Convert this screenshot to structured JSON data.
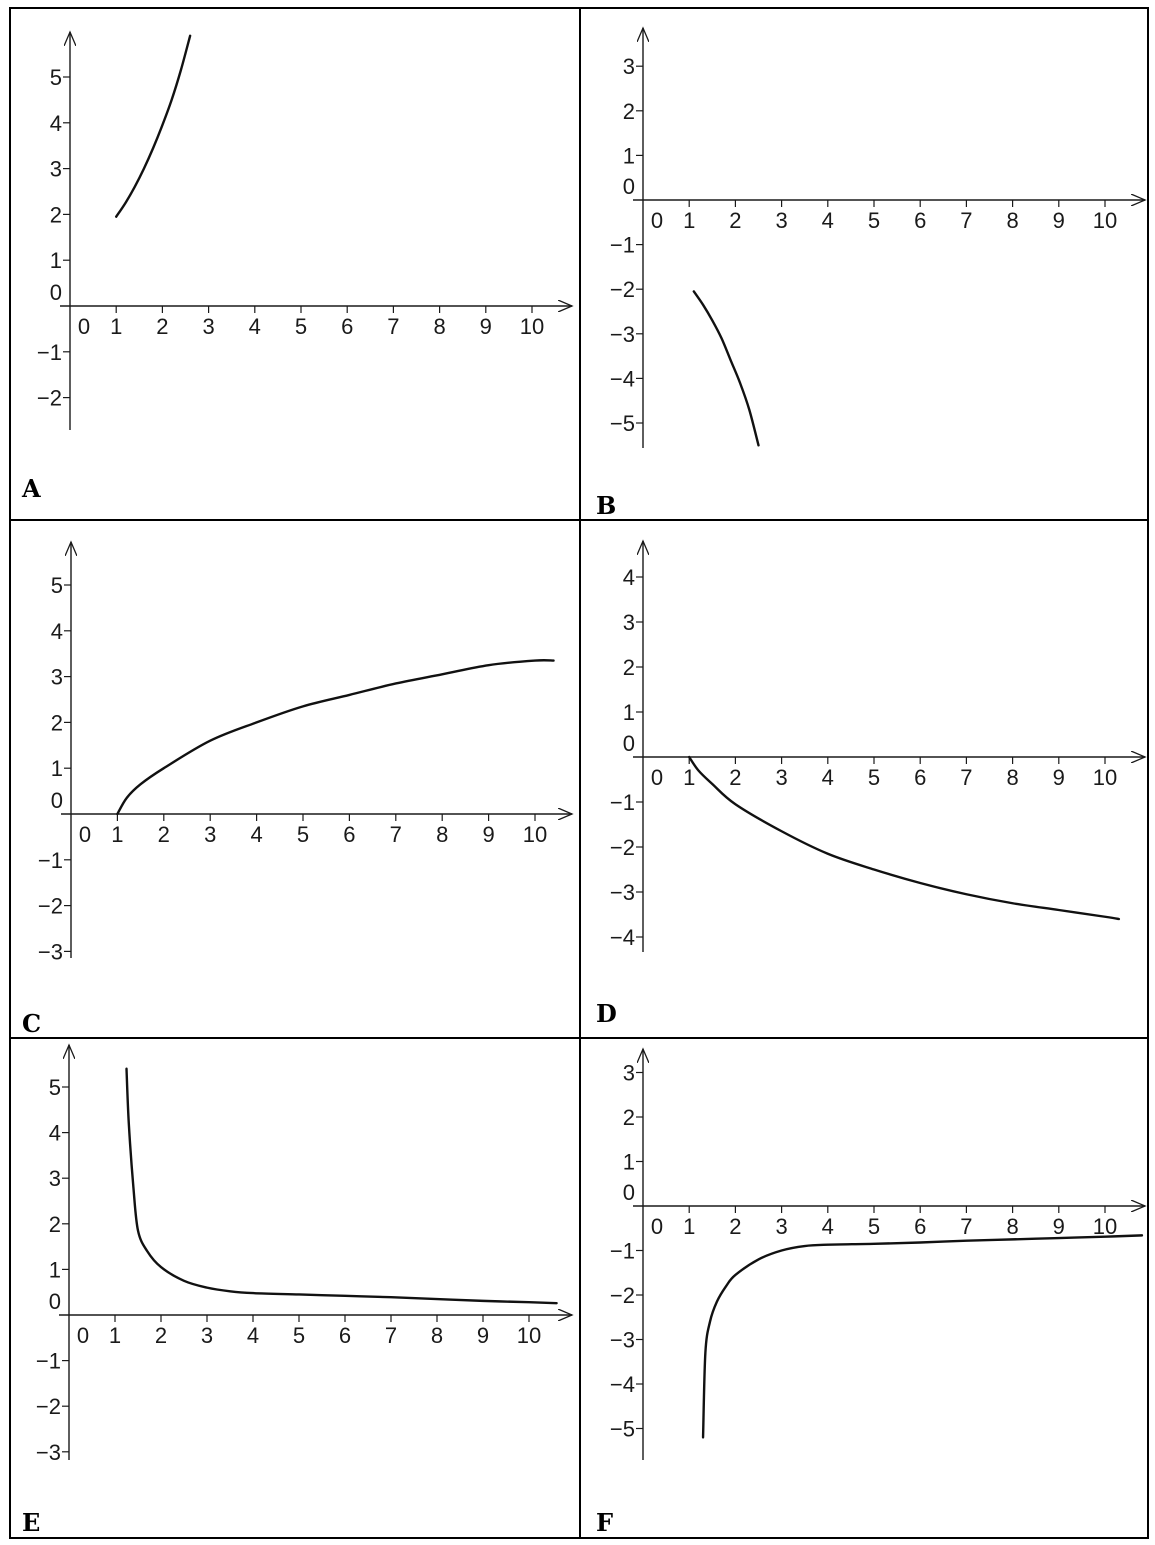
{
  "chart_data": [
    {
      "type": "line",
      "label": "A",
      "xlim": [
        0,
        10
      ],
      "ylim": [
        -2,
        5
      ],
      "x_ticks": [
        "0",
        "1",
        "2",
        "3",
        "4",
        "5",
        "6",
        "7",
        "8",
        "9",
        "10"
      ],
      "y_ticks": [
        "5",
        "4",
        "3",
        "2",
        "1",
        "0",
        "−1",
        "−2"
      ],
      "series": [
        {
          "x": [
            1.0,
            1.2,
            1.4,
            1.6,
            1.8,
            2.0,
            2.2,
            2.4,
            2.6
          ],
          "y": [
            1.95,
            2.25,
            2.6,
            3.0,
            3.45,
            3.95,
            4.5,
            5.15,
            5.9
          ]
        }
      ]
    },
    {
      "type": "line",
      "label": "B",
      "xlim": [
        0,
        10
      ],
      "ylim": [
        -5,
        3
      ],
      "x_ticks": [
        "0",
        "1",
        "2",
        "3",
        "4",
        "5",
        "6",
        "7",
        "8",
        "9",
        "10"
      ],
      "y_ticks": [
        "3",
        "2",
        "1",
        "0",
        "−1",
        "−2",
        "−3",
        "−4",
        "−5"
      ],
      "series": [
        {
          "x": [
            1.1,
            1.3,
            1.5,
            1.7,
            1.9,
            2.1,
            2.3,
            2.5
          ],
          "y": [
            -2.05,
            -2.35,
            -2.7,
            -3.1,
            -3.6,
            -4.1,
            -4.7,
            -5.5
          ]
        }
      ]
    },
    {
      "type": "line",
      "label": "C",
      "xlim": [
        0,
        10
      ],
      "ylim": [
        -3,
        5
      ],
      "x_ticks": [
        "0",
        "1",
        "2",
        "3",
        "4",
        "5",
        "6",
        "7",
        "8",
        "9",
        "10"
      ],
      "y_ticks": [
        "5",
        "4",
        "3",
        "2",
        "1",
        "0",
        "−1",
        "−2",
        "−3"
      ],
      "series": [
        {
          "x": [
            1.0,
            1.2,
            1.5,
            2,
            3,
            4,
            5,
            6,
            7,
            8,
            9,
            10,
            10.4
          ],
          "y": [
            0,
            0.35,
            0.65,
            1.0,
            1.6,
            2.0,
            2.35,
            2.6,
            2.85,
            3.05,
            3.25,
            3.35,
            3.35
          ]
        }
      ]
    },
    {
      "type": "line",
      "label": "D",
      "xlim": [
        0,
        10
      ],
      "ylim": [
        -4,
        4
      ],
      "x_ticks": [
        "0",
        "1",
        "2",
        "3",
        "4",
        "5",
        "6",
        "7",
        "8",
        "9",
        "10"
      ],
      "y_ticks": [
        "4",
        "3",
        "2",
        "1",
        "0",
        "−1",
        "−2",
        "−3",
        "−4"
      ],
      "series": [
        {
          "x": [
            1.0,
            1.2,
            1.5,
            2,
            3,
            4,
            5,
            6,
            7,
            8,
            9,
            10,
            10.3
          ],
          "y": [
            0,
            -0.3,
            -0.6,
            -1.05,
            -1.65,
            -2.15,
            -2.5,
            -2.8,
            -3.05,
            -3.25,
            -3.4,
            -3.55,
            -3.6
          ]
        }
      ]
    },
    {
      "type": "line",
      "label": "E",
      "xlim": [
        0,
        10
      ],
      "ylim": [
        -3,
        5
      ],
      "x_ticks": [
        "0",
        "1",
        "2",
        "3",
        "4",
        "5",
        "6",
        "7",
        "8",
        "9",
        "10"
      ],
      "y_ticks": [
        "5",
        "4",
        "3",
        "2",
        "1",
        "0",
        "−1",
        "−2",
        "−3"
      ],
      "series": [
        {
          "x": [
            1.25,
            1.3,
            1.4,
            1.5,
            1.7,
            2,
            2.5,
            3,
            3.5,
            4,
            5,
            6,
            7,
            8,
            9,
            10,
            10.6
          ],
          "y": [
            5.4,
            4.2,
            2.8,
            1.85,
            1.4,
            1.05,
            0.75,
            0.6,
            0.52,
            0.48,
            0.45,
            0.42,
            0.39,
            0.35,
            0.31,
            0.28,
            0.26
          ]
        }
      ]
    },
    {
      "type": "line",
      "label": "F",
      "xlim": [
        0,
        10
      ],
      "ylim": [
        -5,
        3
      ],
      "x_ticks": [
        "0",
        "1",
        "2",
        "3",
        "4",
        "5",
        "6",
        "7",
        "8",
        "9",
        "10"
      ],
      "y_ticks": [
        "3",
        "2",
        "1",
        "0",
        "−1",
        "−2",
        "−3",
        "−4",
        "−5"
      ],
      "series": [
        {
          "x": [
            1.3,
            1.35,
            1.45,
            1.6,
            1.8,
            2,
            2.5,
            3,
            3.5,
            4,
            5,
            6,
            7,
            8,
            9,
            10,
            10.8
          ],
          "y": [
            -5.2,
            -3.3,
            -2.6,
            -2.15,
            -1.8,
            -1.55,
            -1.2,
            -1.0,
            -0.9,
            -0.87,
            -0.85,
            -0.82,
            -0.78,
            -0.75,
            -0.72,
            -0.69,
            -0.66
          ]
        }
      ]
    }
  ]
}
